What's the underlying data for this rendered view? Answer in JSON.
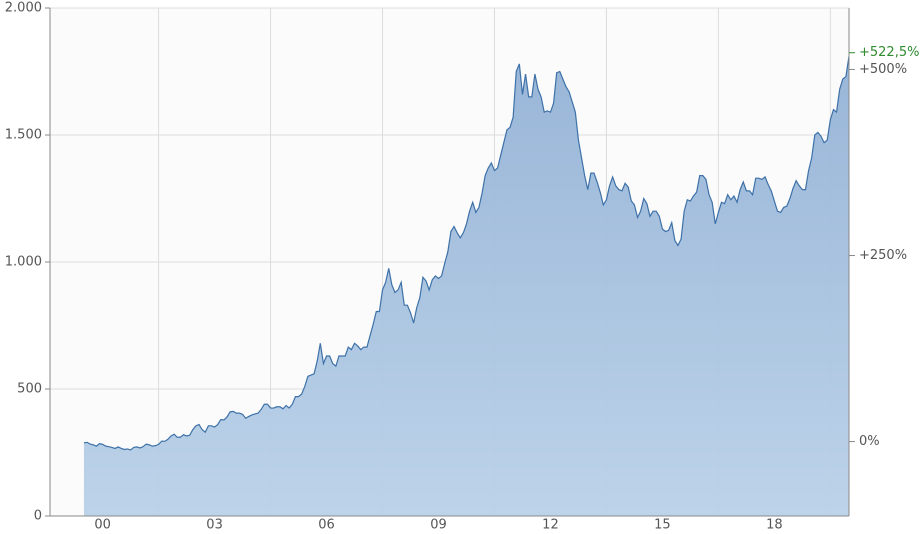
{
  "chart_data": {
    "type": "area",
    "xlim": [
      1999.09,
      2020.5
    ],
    "xticks": [
      {
        "value": 2000.5,
        "label": "00"
      },
      {
        "value": 2003.5,
        "label": "03"
      },
      {
        "value": 2006.5,
        "label": "06"
      },
      {
        "value": 2009.5,
        "label": "09"
      },
      {
        "value": 2012.5,
        "label": "12"
      },
      {
        "value": 2015.5,
        "label": "15"
      },
      {
        "value": 2018.5,
        "label": "18"
      }
    ],
    "xgrid": [
      2002,
      2005,
      2008,
      2011,
      2014,
      2017,
      2020
    ],
    "ylim": [
      0,
      2000
    ],
    "yticks": [
      0,
      500,
      {
        "value": 1000,
        "label": "1.000"
      },
      {
        "value": 1500,
        "label": "1.500"
      },
      {
        "value": 2000,
        "label": "2.000"
      }
    ],
    "y2lim": [
      -100,
      582.6
    ],
    "y2ticks": [
      {
        "value": 0,
        "label": "0%"
      },
      {
        "value": 250,
        "label": "+250%"
      },
      {
        "value": 500,
        "label": "+500%"
      }
    ],
    "last_value_label": {
      "value": 522.5,
      "label": "+522,5%",
      "color": "#2e8b2e"
    },
    "grid": true,
    "series": [
      {
        "color": "#3d71a8",
        "fill": "#a6c1de",
        "x": [
          2000,
          2000.0833,
          2000.1667,
          2000.25,
          2000.3333,
          2000.4167,
          2000.5,
          2000.5833,
          2000.6667,
          2000.75,
          2000.8333,
          2000.9167,
          2001,
          2001.0833,
          2001.1667,
          2001.25,
          2001.3333,
          2001.4167,
          2001.5,
          2001.5833,
          2001.6667,
          2001.75,
          2001.8333,
          2001.9167,
          2002,
          2002.0833,
          2002.1667,
          2002.25,
          2002.3333,
          2002.4167,
          2002.5,
          2002.5833,
          2002.6667,
          2002.75,
          2002.8333,
          2002.9167,
          2003,
          2003.0833,
          2003.1667,
          2003.25,
          2003.3333,
          2003.4167,
          2003.5,
          2003.5833,
          2003.6667,
          2003.75,
          2003.8333,
          2003.9167,
          2004,
          2004.0833,
          2004.1667,
          2004.25,
          2004.3333,
          2004.4167,
          2004.5,
          2004.5833,
          2004.6667,
          2004.75,
          2004.8333,
          2004.9167,
          2005,
          2005.0833,
          2005.1667,
          2005.25,
          2005.3333,
          2005.4167,
          2005.5,
          2005.5833,
          2005.6667,
          2005.75,
          2005.8333,
          2005.9167,
          2006,
          2006.0833,
          2006.1667,
          2006.25,
          2006.3333,
          2006.4167,
          2006.5,
          2006.5833,
          2006.6667,
          2006.75,
          2006.8333,
          2006.9167,
          2007,
          2007.0833,
          2007.1667,
          2007.25,
          2007.3333,
          2007.4167,
          2007.5,
          2007.5833,
          2007.6667,
          2007.75,
          2007.8333,
          2007.9167,
          2008,
          2008.0833,
          2008.1667,
          2008.25,
          2008.3333,
          2008.4167,
          2008.5,
          2008.5833,
          2008.6667,
          2008.75,
          2008.8333,
          2008.9167,
          2009,
          2009.0833,
          2009.1667,
          2009.25,
          2009.3333,
          2009.4167,
          2009.5,
          2009.5833,
          2009.6667,
          2009.75,
          2009.8333,
          2009.9167,
          2010,
          2010.0833,
          2010.1667,
          2010.25,
          2010.3333,
          2010.4167,
          2010.5,
          2010.5833,
          2010.6667,
          2010.75,
          2010.8333,
          2010.9167,
          2011,
          2011.0833,
          2011.1667,
          2011.25,
          2011.3333,
          2011.4167,
          2011.5,
          2011.5833,
          2011.6667,
          2011.75,
          2011.8333,
          2011.9167,
          2012,
          2012.0833,
          2012.1667,
          2012.25,
          2012.3333,
          2012.4167,
          2012.5,
          2012.5833,
          2012.6667,
          2012.75,
          2012.8333,
          2012.9167,
          2013,
          2013.0833,
          2013.1667,
          2013.25,
          2013.3333,
          2013.4167,
          2013.5,
          2013.5833,
          2013.6667,
          2013.75,
          2013.8333,
          2013.9167,
          2014,
          2014.0833,
          2014.1667,
          2014.25,
          2014.3333,
          2014.4167,
          2014.5,
          2014.5833,
          2014.6667,
          2014.75,
          2014.8333,
          2014.9167,
          2015,
          2015.0833,
          2015.1667,
          2015.25,
          2015.3333,
          2015.4167,
          2015.5,
          2015.5833,
          2015.6667,
          2015.75,
          2015.8333,
          2015.9167,
          2016,
          2016.0833,
          2016.1667,
          2016.25,
          2016.3333,
          2016.4167,
          2016.5,
          2016.5833,
          2016.6667,
          2016.75,
          2016.8333,
          2016.9167,
          2017,
          2017.0833,
          2017.1667,
          2017.25,
          2017.3333,
          2017.4167,
          2017.5,
          2017.5833,
          2017.6667,
          2017.75,
          2017.8333,
          2017.9167,
          2018,
          2018.0833,
          2018.1667,
          2018.25,
          2018.3333,
          2018.4167,
          2018.5,
          2018.5833,
          2018.6667,
          2018.75,
          2018.8333,
          2018.9167,
          2019,
          2019.0833,
          2019.1667,
          2019.25,
          2019.3333,
          2019.4167,
          2019.5,
          2019.5833,
          2019.6667,
          2019.75,
          2019.8333,
          2019.9167,
          2020,
          2020.0833,
          2020.1667,
          2020.25,
          2020.3333,
          2020.4167,
          2020.5
        ],
        "values": [
          288,
          290,
          283,
          280,
          275,
          285,
          282,
          275,
          273,
          270,
          266,
          272,
          266,
          262,
          264,
          260,
          270,
          272,
          268,
          273,
          283,
          280,
          275,
          277,
          282,
          295,
          294,
          302,
          315,
          322,
          310,
          310,
          320,
          315,
          318,
          340,
          355,
          360,
          340,
          330,
          355,
          355,
          350,
          360,
          380,
          378,
          390,
          410,
          412,
          405,
          405,
          400,
          385,
          392,
          398,
          402,
          405,
          420,
          440,
          440,
          425,
          425,
          430,
          430,
          422,
          435,
          425,
          440,
          470,
          470,
          480,
          510,
          550,
          555,
          560,
          610,
          680,
          600,
          630,
          630,
          600,
          590,
          630,
          630,
          630,
          665,
          655,
          680,
          670,
          655,
          665,
          665,
          710,
          755,
          805,
          805,
          890,
          920,
          975,
          910,
          880,
          890,
          920,
          830,
          830,
          800,
          760,
          820,
          860,
          940,
          925,
          890,
          930,
          945,
          935,
          945,
          995,
          1040,
          1120,
          1140,
          1115,
          1095,
          1115,
          1150,
          1200,
          1235,
          1195,
          1215,
          1270,
          1340,
          1370,
          1390,
          1360,
          1370,
          1420,
          1470,
          1520,
          1530,
          1570,
          1750,
          1780,
          1660,
          1740,
          1650,
          1650,
          1740,
          1680,
          1650,
          1590,
          1595,
          1590,
          1625,
          1745,
          1750,
          1720,
          1690,
          1670,
          1630,
          1590,
          1480,
          1410,
          1340,
          1285,
          1350,
          1350,
          1315,
          1275,
          1225,
          1245,
          1300,
          1335,
          1300,
          1285,
          1280,
          1310,
          1295,
          1240,
          1225,
          1175,
          1200,
          1250,
          1230,
          1180,
          1200,
          1200,
          1180,
          1130,
          1120,
          1125,
          1155,
          1085,
          1065,
          1090,
          1200,
          1245,
          1240,
          1260,
          1275,
          1340,
          1340,
          1325,
          1265,
          1235,
          1150,
          1195,
          1235,
          1230,
          1265,
          1245,
          1260,
          1235,
          1285,
          1315,
          1280,
          1280,
          1265,
          1330,
          1330,
          1325,
          1335,
          1305,
          1280,
          1240,
          1200,
          1195,
          1215,
          1220,
          1250,
          1290,
          1320,
          1300,
          1285,
          1285,
          1360,
          1410,
          1500,
          1510,
          1495,
          1470,
          1480,
          1560,
          1600,
          1590,
          1680,
          1720,
          1730,
          1810
        ]
      }
    ]
  }
}
